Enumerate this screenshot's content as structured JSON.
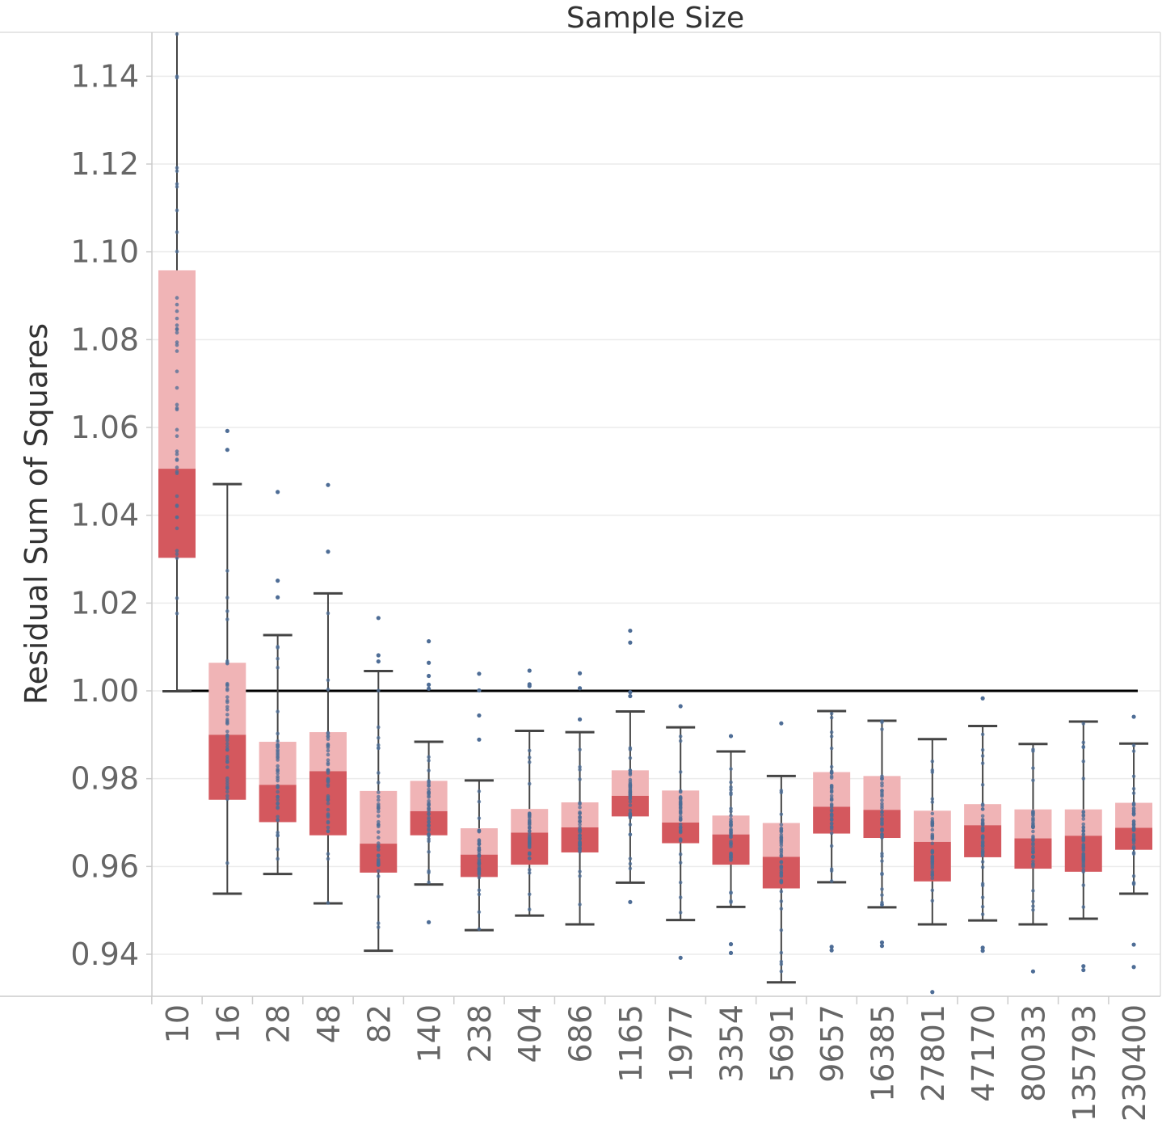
{
  "chart_data": {
    "type": "box",
    "title": "Sample Size",
    "xlabel": "",
    "ylabel": "Residual Sum of Squares",
    "ylim": [
      0.93,
      1.15
    ],
    "yticks": [
      0.94,
      0.96,
      0.98,
      1.0,
      1.02,
      1.04,
      1.06,
      1.08,
      1.1,
      1.12,
      1.14
    ],
    "ytick_labels": [
      "0.94",
      "0.96",
      "0.98",
      "1.00",
      "1.02",
      "1.04",
      "1.06",
      "1.08",
      "1.10",
      "1.12",
      "1.14"
    ],
    "reference_line": 1.0,
    "grid": true,
    "colors": {
      "upper_box": "#f0b4b6",
      "lower_box": "#d4585e",
      "points": "#4e6d96",
      "whisker": "#444444",
      "reference": "#000000",
      "grid": "#ebebeb",
      "axis": "#cccccc"
    },
    "categories": [
      "10",
      "16",
      "28",
      "48",
      "82",
      "140",
      "238",
      "404",
      "686",
      "1165",
      "1977",
      "3354",
      "5691",
      "9657",
      "16385",
      "27801",
      "47170",
      "80033",
      "135793",
      "230400"
    ],
    "boxes": [
      {
        "category": "10",
        "whisker_low": 0.9999,
        "q1": 1.0303,
        "median": 1.0506,
        "q3": 1.0958,
        "whisker_high": 1.15,
        "outliers": []
      },
      {
        "category": "16",
        "whisker_low": 0.9538,
        "q1": 0.9752,
        "median": 0.99,
        "q3": 1.0064,
        "whisker_high": 1.0471,
        "outliers": [
          1.0549,
          1.0592
        ]
      },
      {
        "category": "28",
        "whisker_low": 0.9583,
        "q1": 0.9701,
        "median": 0.9786,
        "q3": 0.9884,
        "whisker_high": 1.0127,
        "outliers": [
          1.0213,
          1.0251,
          1.0453
        ]
      },
      {
        "category": "48",
        "whisker_low": 0.9516,
        "q1": 0.9671,
        "median": 0.9817,
        "q3": 0.9906,
        "whisker_high": 1.0222,
        "outliers": [
          1.0317,
          1.0469
        ]
      },
      {
        "category": "82",
        "whisker_low": 0.9408,
        "q1": 0.9586,
        "median": 0.9652,
        "q3": 0.9772,
        "whisker_high": 1.0045,
        "outliers": [
          1.0067,
          1.0081,
          1.0166
        ]
      },
      {
        "category": "140",
        "whisker_low": 0.9559,
        "q1": 0.9671,
        "median": 0.9726,
        "q3": 0.9795,
        "whisker_high": 0.9884,
        "outliers": [
          0.9473,
          1.0005,
          1.0014,
          1.0034,
          1.0064,
          1.0113
        ]
      },
      {
        "category": "238",
        "whisker_low": 0.9455,
        "q1": 0.9576,
        "median": 0.9627,
        "q3": 0.9687,
        "whisker_high": 0.9796,
        "outliers": [
          0.9889,
          0.9944,
          1.0001,
          1.0039
        ]
      },
      {
        "category": "404",
        "whisker_low": 0.9488,
        "q1": 0.9604,
        "median": 0.9677,
        "q3": 0.9731,
        "whisker_high": 0.9909,
        "outliers": [
          1.0011,
          1.0015,
          1.0046
        ]
      },
      {
        "category": "686",
        "whisker_low": 0.9468,
        "q1": 0.9632,
        "median": 0.9689,
        "q3": 0.9746,
        "whisker_high": 0.9906,
        "outliers": [
          0.9935,
          1.0006,
          1.004
        ]
      },
      {
        "category": "1165",
        "whisker_low": 0.9563,
        "q1": 0.9714,
        "median": 0.9761,
        "q3": 0.9819,
        "whisker_high": 0.9953,
        "outliers": [
          0.9519,
          0.9988,
          0.9997,
          1.011,
          1.0137
        ]
      },
      {
        "category": "1977",
        "whisker_low": 0.9478,
        "q1": 0.9653,
        "median": 0.97,
        "q3": 0.9773,
        "whisker_high": 0.9917,
        "outliers": [
          0.9392,
          0.9965
        ]
      },
      {
        "category": "3354",
        "whisker_low": 0.9508,
        "q1": 0.9604,
        "median": 0.9673,
        "q3": 0.9716,
        "whisker_high": 0.9862,
        "outliers": [
          0.9403,
          0.9423,
          0.9897
        ]
      },
      {
        "category": "5691",
        "whisker_low": 0.9336,
        "q1": 0.955,
        "median": 0.9622,
        "q3": 0.9699,
        "whisker_high": 0.9806,
        "outliers": [
          0.9926
        ]
      },
      {
        "category": "9657",
        "whisker_low": 0.9564,
        "q1": 0.9675,
        "median": 0.9736,
        "q3": 0.9815,
        "whisker_high": 0.9954,
        "outliers": [
          0.9409,
          0.9417
        ]
      },
      {
        "category": "16385",
        "whisker_low": 0.9507,
        "q1": 0.9665,
        "median": 0.9729,
        "q3": 0.9806,
        "whisker_high": 0.9932,
        "outliers": [
          0.9419,
          0.9427
        ]
      },
      {
        "category": "27801",
        "whisker_low": 0.9468,
        "q1": 0.9566,
        "median": 0.9656,
        "q3": 0.9727,
        "whisker_high": 0.989,
        "outliers": [
          0.9314
        ]
      },
      {
        "category": "47170",
        "whisker_low": 0.9477,
        "q1": 0.9621,
        "median": 0.9694,
        "q3": 0.9742,
        "whisker_high": 0.992,
        "outliers": [
          0.9408,
          0.9415,
          0.9983
        ]
      },
      {
        "category": "80033",
        "whisker_low": 0.9468,
        "q1": 0.9595,
        "median": 0.9664,
        "q3": 0.973,
        "whisker_high": 0.9879,
        "outliers": [
          0.9361
        ]
      },
      {
        "category": "135793",
        "whisker_low": 0.9481,
        "q1": 0.9588,
        "median": 0.967,
        "q3": 0.973,
        "whisker_high": 0.993,
        "outliers": [
          0.9364,
          0.9373
        ]
      },
      {
        "category": "230400",
        "whisker_low": 0.9538,
        "q1": 0.9638,
        "median": 0.9688,
        "q3": 0.9745,
        "whisker_high": 0.988,
        "outliers": [
          0.9371,
          0.9422,
          0.9941
        ]
      }
    ]
  }
}
